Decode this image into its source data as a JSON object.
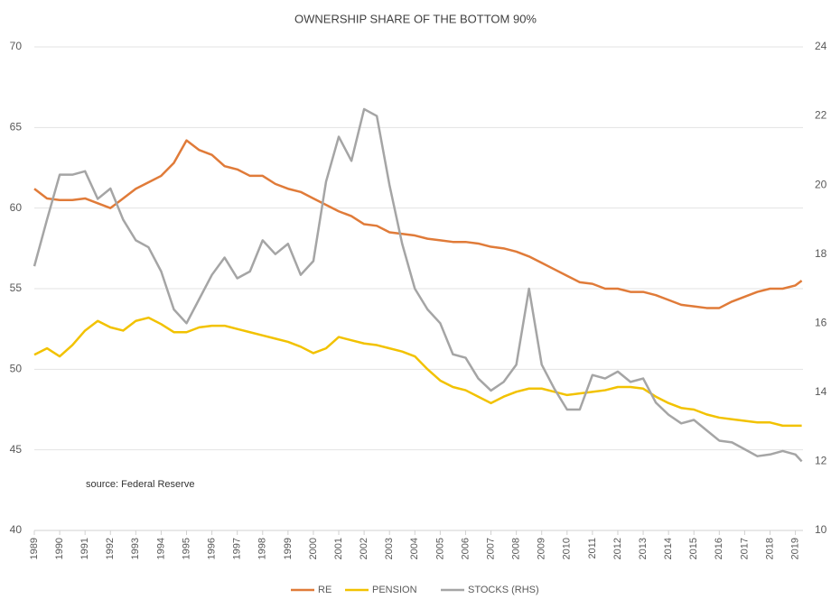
{
  "chart_data": {
    "type": "line",
    "title": "OWNERSHIP SHARE OF THE BOTTOM  90%",
    "annotation": "source: Federal Reserve",
    "x": [
      1989,
      1989.5,
      1990,
      1990.5,
      1991,
      1991.5,
      1992,
      1992.5,
      1993,
      1993.5,
      1994,
      1994.5,
      1995,
      1995.5,
      1996,
      1996.5,
      1997,
      1997.5,
      1998,
      1998.5,
      1999,
      1999.5,
      2000,
      2000.5,
      2001,
      2001.5,
      2002,
      2002.5,
      2003,
      2003.5,
      2004,
      2004.5,
      2005,
      2005.5,
      2006,
      2006.5,
      2007,
      2007.5,
      2008,
      2008.5,
      2009,
      2009.5,
      2010,
      2010.5,
      2011,
      2011.5,
      2012,
      2012.5,
      2013,
      2013.5,
      2014,
      2014.5,
      2015,
      2015.5,
      2016,
      2016.5,
      2017,
      2017.5,
      2018,
      2018.5,
      2019,
      2019.25
    ],
    "series": [
      {
        "name": "RE",
        "color": "#e07b39",
        "axis": "y",
        "values": [
          61.2,
          60.6,
          60.5,
          60.5,
          60.6,
          60.3,
          60.0,
          60.6,
          61.2,
          61.6,
          62.0,
          62.8,
          64.2,
          63.6,
          63.3,
          62.6,
          62.4,
          62.0,
          62.0,
          61.5,
          61.2,
          61.0,
          60.6,
          60.2,
          59.8,
          59.5,
          59.0,
          58.9,
          58.5,
          58.4,
          58.3,
          58.1,
          58.0,
          57.9,
          57.9,
          57.8,
          57.6,
          57.5,
          57.3,
          57.0,
          56.6,
          56.2,
          55.8,
          55.4,
          55.3,
          55.0,
          55.0,
          54.8,
          54.8,
          54.6,
          54.3,
          54.0,
          53.9,
          53.8,
          53.8,
          54.2,
          54.5,
          54.8,
          55.0,
          55.0,
          55.2,
          55.5
        ]
      },
      {
        "name": "PENSION",
        "color": "#f2c200",
        "axis": "y",
        "values": [
          50.9,
          51.3,
          50.8,
          51.5,
          52.4,
          53.0,
          52.6,
          52.4,
          53.0,
          53.2,
          52.8,
          52.3,
          52.3,
          52.6,
          52.7,
          52.7,
          52.5,
          52.3,
          52.1,
          51.9,
          51.7,
          51.4,
          51.0,
          51.3,
          52.0,
          51.8,
          51.6,
          51.5,
          51.3,
          51.1,
          50.8,
          50.0,
          49.3,
          48.9,
          48.7,
          48.3,
          47.9,
          48.3,
          48.6,
          48.8,
          48.8,
          48.6,
          48.4,
          48.5,
          48.6,
          48.7,
          48.9,
          48.9,
          48.8,
          48.3,
          47.9,
          47.6,
          47.5,
          47.2,
          47.0,
          46.9,
          46.8,
          46.7,
          46.7,
          46.5,
          46.5,
          46.5
        ]
      },
      {
        "name": "STOCKS (RHS)",
        "color": "#a5a5a5",
        "axis": "y2",
        "values": [
          17.65,
          19.0,
          20.3,
          20.3,
          20.4,
          19.6,
          19.9,
          19.0,
          18.4,
          18.2,
          17.5,
          16.4,
          16.0,
          16.7,
          17.4,
          17.9,
          17.3,
          17.5,
          18.4,
          18.0,
          18.3,
          17.4,
          17.8,
          20.1,
          21.4,
          20.7,
          22.2,
          22.0,
          20.0,
          18.3,
          17.0,
          16.4,
          16.0,
          15.1,
          15.0,
          14.4,
          14.05,
          14.3,
          14.8,
          17.0,
          14.8,
          14.1,
          13.5,
          13.5,
          14.5,
          14.4,
          14.6,
          14.3,
          14.4,
          13.7,
          13.35,
          13.1,
          13.2,
          12.9,
          12.6,
          12.55,
          12.35,
          12.15,
          12.2,
          12.3,
          12.2,
          12.0
        ]
      }
    ],
    "xlim": [
      1989,
      2019.3
    ],
    "xticks": [
      1989,
      1990,
      1991,
      1992,
      1993,
      1994,
      1995,
      1996,
      1997,
      1998,
      1999,
      2000,
      2001,
      2002,
      2003,
      2004,
      2005,
      2006,
      2007,
      2008,
      2009,
      2010,
      2011,
      2012,
      2013,
      2014,
      2015,
      2016,
      2017,
      2018,
      2019
    ],
    "ylim": [
      40,
      70
    ],
    "yticks": [
      40,
      45,
      50,
      55,
      60,
      65,
      70
    ],
    "y2lim": [
      10,
      24
    ],
    "y2ticks": [
      10,
      12,
      14,
      16,
      18,
      20,
      22,
      24
    ],
    "grid": true
  }
}
